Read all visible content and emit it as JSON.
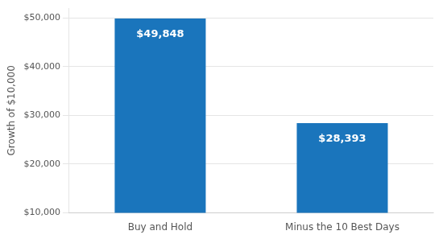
{
  "chart_data": {
    "type": "bar",
    "categories": [
      "Buy and Hold",
      "Minus the 10 Best Days"
    ],
    "values": [
      49848,
      28393
    ],
    "value_labels": [
      "$49,848",
      "$28,393"
    ],
    "data_labels": true,
    "color": "#1a75bc",
    "ylabel": "Growth of $10,000",
    "ylim": [
      10000,
      52000
    ],
    "yticks": [
      {
        "value": 10000,
        "label": "$10,000"
      },
      {
        "value": 20000,
        "label": "$20,000"
      },
      {
        "value": 30000,
        "label": "$30,000"
      },
      {
        "value": 40000,
        "label": "$40,000"
      },
      {
        "value": 50000,
        "label": "$50,000"
      }
    ],
    "grid": true
  }
}
